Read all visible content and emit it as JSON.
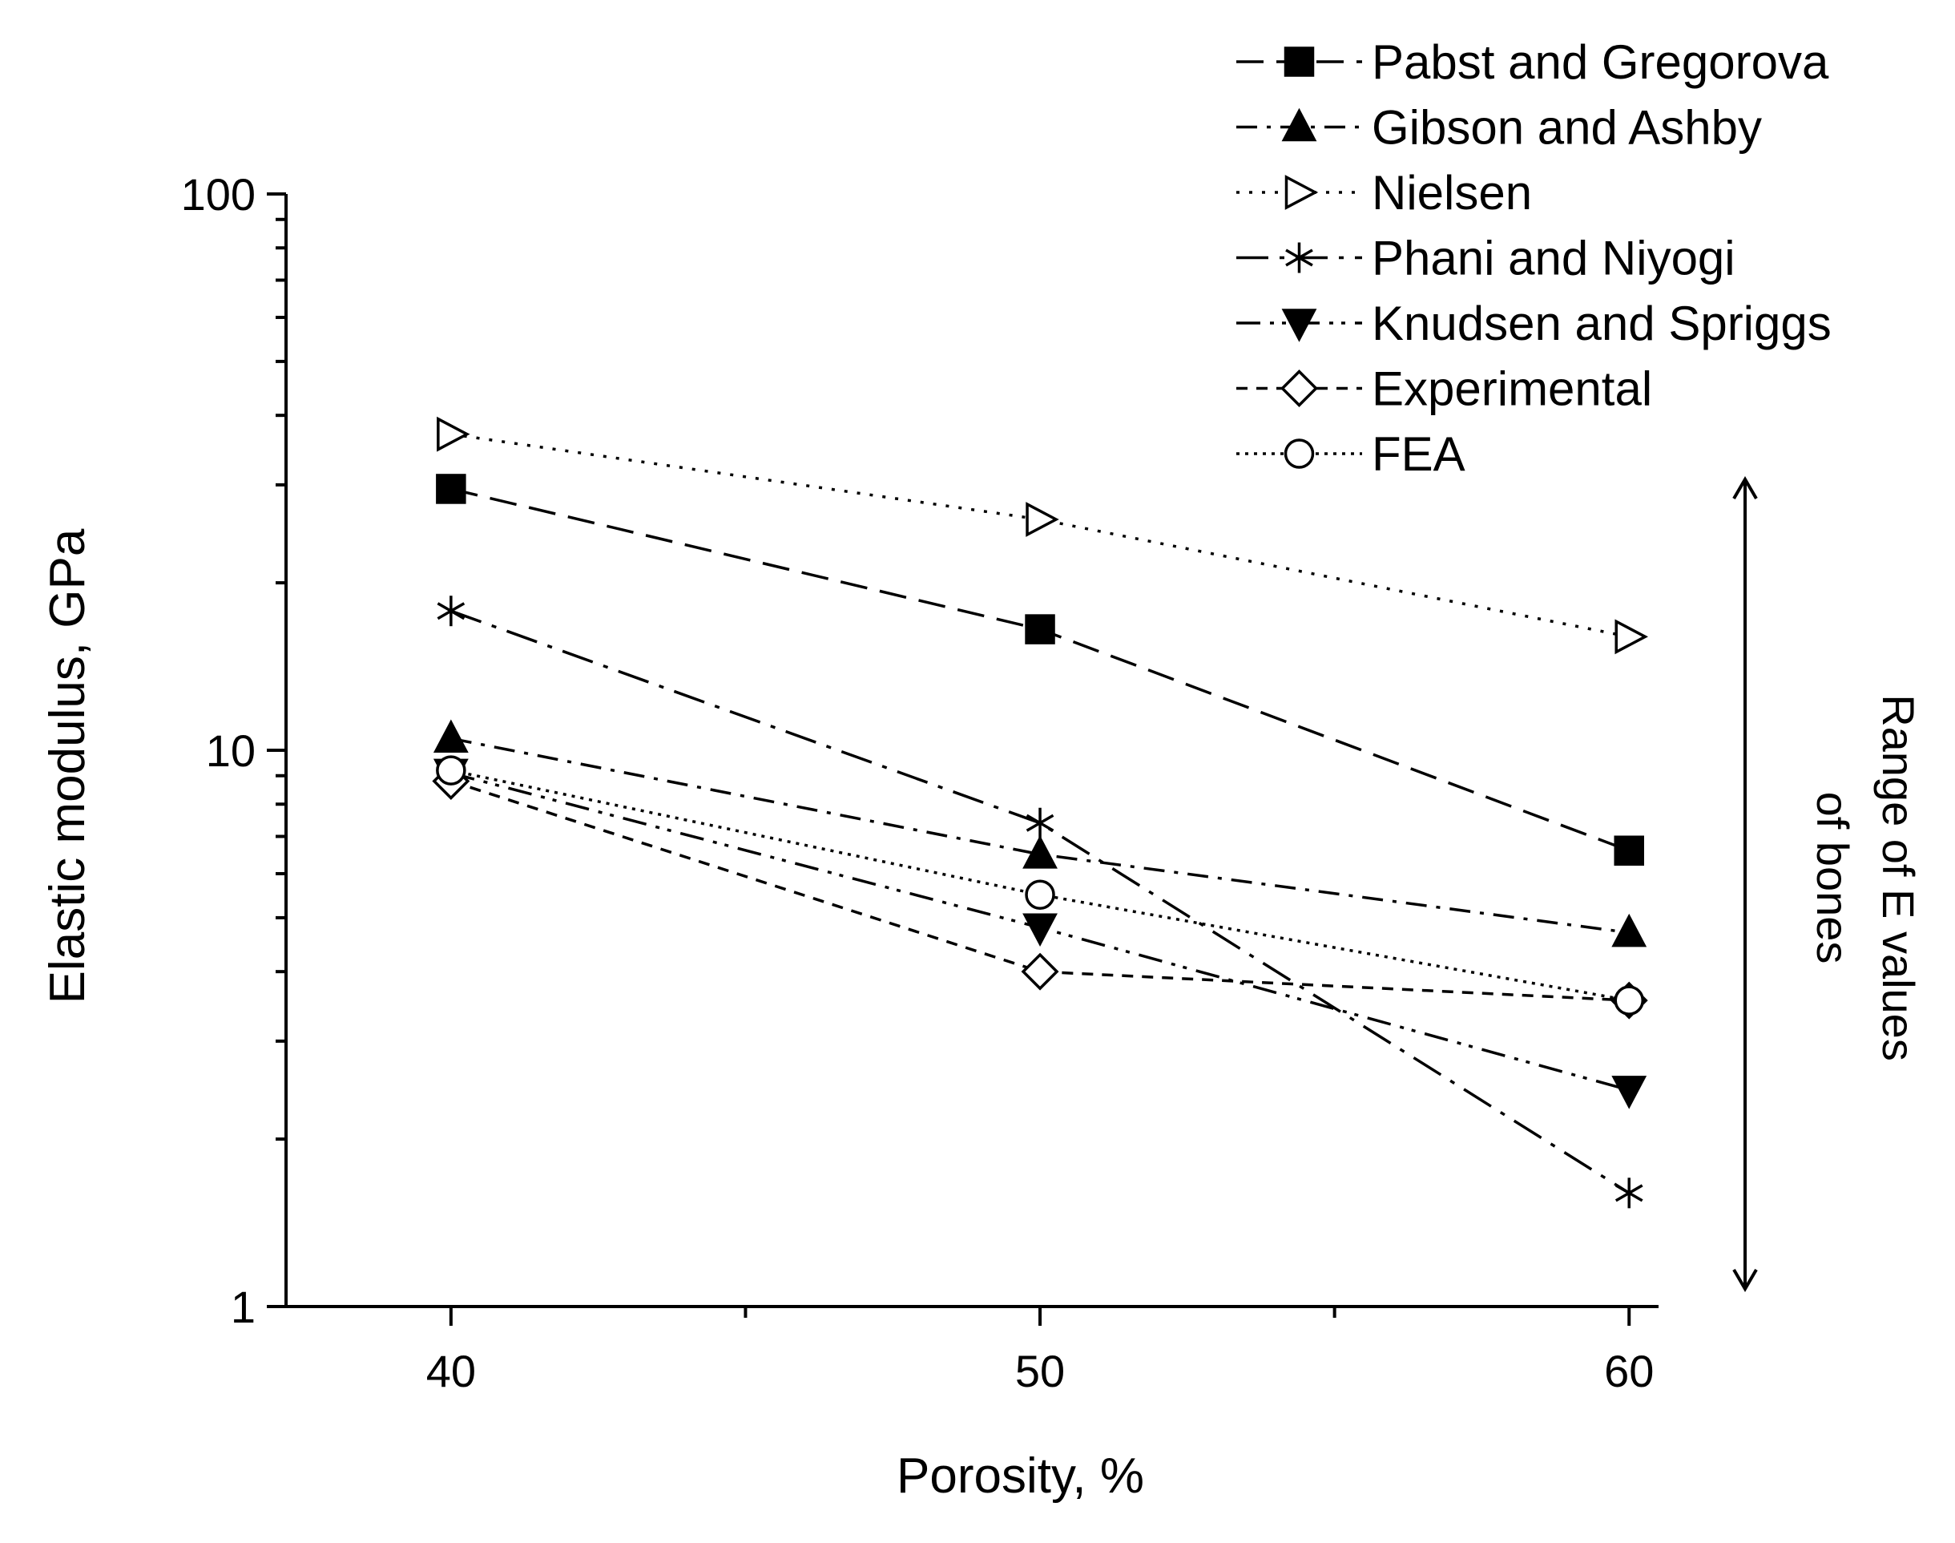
{
  "chart_data": {
    "type": "line",
    "title": "",
    "xlabel": "Porosity, %",
    "ylabel": "Elastic modulus, GPa",
    "x": [
      40,
      50,
      60
    ],
    "xlim": [
      37.2,
      60.5
    ],
    "xticks": [
      40,
      50,
      60
    ],
    "x_minor_ticks": [
      45,
      55
    ],
    "yscale": "log",
    "ylim": [
      1,
      100
    ],
    "yticks": [
      1,
      10,
      100
    ],
    "y_tick_labels": [
      "1",
      "10",
      "100"
    ],
    "grid": false,
    "legend_position": "top-right",
    "series": [
      {
        "name": "Pabst and Gregorova",
        "marker": "square-filled",
        "dash": "long-dash",
        "values": [
          29.5,
          16.5,
          6.6
        ]
      },
      {
        "name": "Gibson and Ashby",
        "marker": "triangle-up-filled",
        "dash": "dash-dot",
        "values": [
          10.5,
          6.5,
          4.7
        ]
      },
      {
        "name": "Nielsen",
        "marker": "triangle-right-open",
        "dash": "dotted",
        "values": [
          37,
          26,
          16
        ]
      },
      {
        "name": "Phani and Niyogi",
        "marker": "asterisk",
        "dash": "long-dash-dot",
        "values": [
          17.8,
          7.4,
          1.6
        ]
      },
      {
        "name": "Knudsen and Spriggs",
        "marker": "triangle-down-filled",
        "dash": "dash-dot-dot",
        "values": [
          9.1,
          4.8,
          2.45
        ]
      },
      {
        "name": "Experimental",
        "marker": "diamond-open",
        "dash": "short-dash",
        "values": [
          8.8,
          4.0,
          3.55
        ]
      },
      {
        "name": "FEA",
        "marker": "circle-open",
        "dash": "fine-dotted",
        "values": [
          9.2,
          5.5,
          3.55
        ]
      }
    ],
    "annotation": {
      "text_line1": "Range of E values",
      "text_line2": "of bones",
      "range": [
        1,
        26
      ]
    }
  }
}
